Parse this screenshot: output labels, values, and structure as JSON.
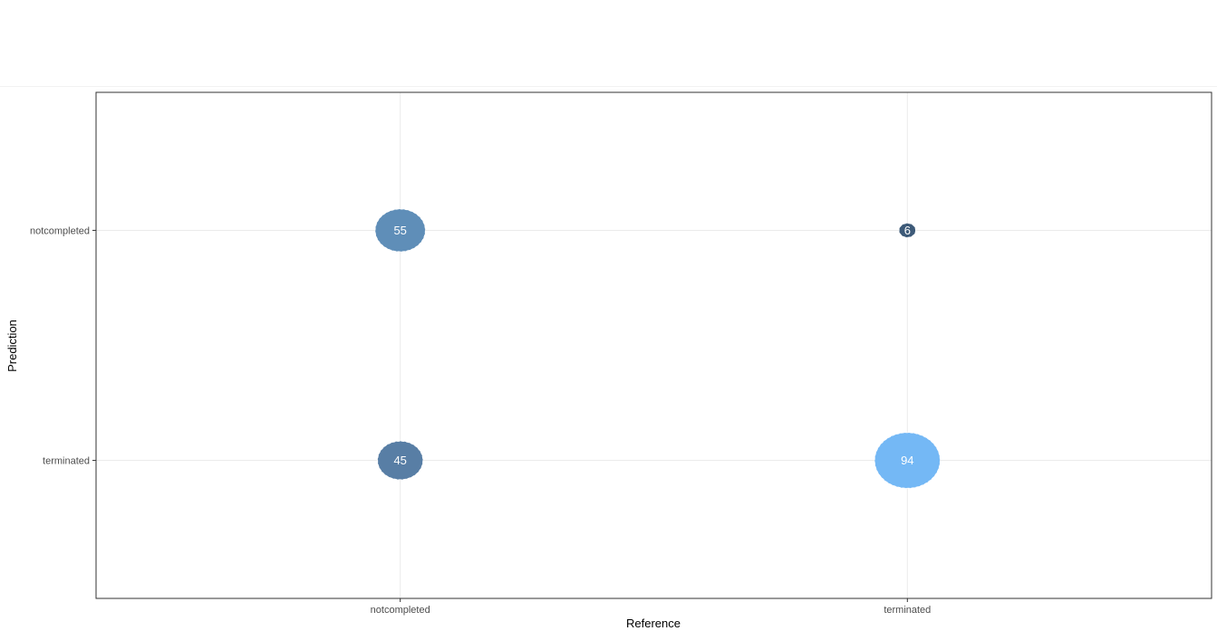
{
  "chart_data": {
    "type": "scatter",
    "subtype": "bubble-confusion-matrix",
    "title": "",
    "xlabel": "Reference",
    "ylabel": "Prediction",
    "x_categories": [
      "notcompleted",
      "terminated"
    ],
    "y_categories": [
      "terminated",
      "notcompleted"
    ],
    "grid": true,
    "legend": "none",
    "points": [
      {
        "x": "notcompleted",
        "y": "notcompleted",
        "value": 55,
        "label": "55",
        "color": "#5f8eb8"
      },
      {
        "x": "terminated",
        "y": "notcompleted",
        "value": 6,
        "label": "6",
        "color": "#3d5a78"
      },
      {
        "x": "notcompleted",
        "y": "terminated",
        "value": 45,
        "label": "45",
        "color": "#587ea5"
      },
      {
        "x": "terminated",
        "y": "terminated",
        "value": 94,
        "label": "94",
        "color": "#74b8f5"
      }
    ],
    "colors": {
      "panel_border": "#333333",
      "grid": "#ebebeb",
      "tick_text": "#4d4d4d",
      "axis_title": "#000000",
      "label_text": "#ffffff"
    }
  }
}
